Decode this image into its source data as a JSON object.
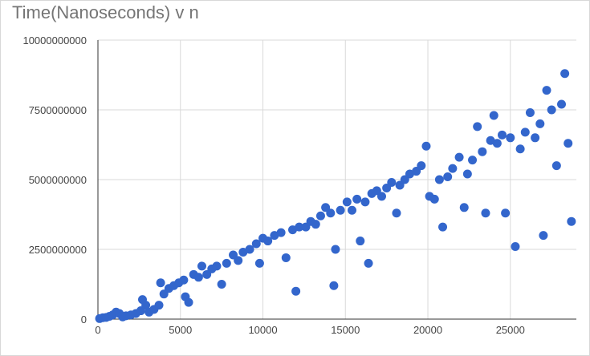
{
  "chart_data": {
    "type": "scatter",
    "title": "Time(Nanoseconds) v n",
    "xlabel": "",
    "ylabel": "",
    "xlim": [
      0,
      29000
    ],
    "ylim": [
      0,
      10000000000
    ],
    "x_ticks": [
      0,
      5000,
      10000,
      15000,
      20000,
      25000
    ],
    "y_ticks": [
      0,
      2500000000,
      5000000000,
      7500000000,
      10000000000
    ],
    "x_tick_labels": [
      "0",
      "5000",
      "10000",
      "15000",
      "20000",
      "25000"
    ],
    "y_tick_labels": [
      "0",
      "2500000000",
      "5000000000",
      "7500000000",
      "10000000000"
    ],
    "grid": true,
    "legend": "none",
    "point_color": "#3366cc",
    "series": [
      {
        "points": [
          [
            100,
            20000000
          ],
          [
            300,
            50000000
          ],
          [
            500,
            60000000
          ],
          [
            700,
            100000000
          ],
          [
            900,
            150000000
          ],
          [
            1100,
            250000000
          ],
          [
            1300,
            200000000
          ],
          [
            1500,
            80000000
          ],
          [
            1700,
            120000000
          ],
          [
            2000,
            150000000
          ],
          [
            2300,
            200000000
          ],
          [
            2600,
            300000000
          ],
          [
            2700,
            700000000
          ],
          [
            2900,
            500000000
          ],
          [
            3100,
            250000000
          ],
          [
            3400,
            350000000
          ],
          [
            3700,
            500000000
          ],
          [
            3800,
            1300000000
          ],
          [
            4000,
            900000000
          ],
          [
            4300,
            1100000000
          ],
          [
            4600,
            1200000000
          ],
          [
            4900,
            1300000000
          ],
          [
            5200,
            1400000000
          ],
          [
            5300,
            800000000
          ],
          [
            5500,
            600000000
          ],
          [
            5800,
            1600000000
          ],
          [
            6100,
            1500000000
          ],
          [
            6300,
            1900000000
          ],
          [
            6600,
            1600000000
          ],
          [
            6900,
            1800000000
          ],
          [
            7200,
            1900000000
          ],
          [
            7500,
            1250000000
          ],
          [
            7800,
            2000000000
          ],
          [
            8200,
            2300000000
          ],
          [
            8500,
            2100000000
          ],
          [
            8800,
            2400000000
          ],
          [
            9200,
            2500000000
          ],
          [
            9600,
            2700000000
          ],
          [
            9800,
            2000000000
          ],
          [
            10000,
            2900000000
          ],
          [
            10300,
            2800000000
          ],
          [
            10700,
            3000000000
          ],
          [
            11100,
            3100000000
          ],
          [
            11400,
            2200000000
          ],
          [
            11800,
            3200000000
          ],
          [
            12000,
            1000000000
          ],
          [
            12200,
            3300000000
          ],
          [
            12600,
            3300000000
          ],
          [
            12900,
            3500000000
          ],
          [
            13200,
            3400000000
          ],
          [
            13500,
            3700000000
          ],
          [
            13800,
            4000000000
          ],
          [
            14100,
            3800000000
          ],
          [
            14300,
            1200000000
          ],
          [
            14400,
            2500000000
          ],
          [
            14700,
            3900000000
          ],
          [
            15100,
            4200000000
          ],
          [
            15400,
            3900000000
          ],
          [
            15700,
            4300000000
          ],
          [
            15900,
            2800000000
          ],
          [
            16200,
            4200000000
          ],
          [
            16400,
            2000000000
          ],
          [
            16600,
            4500000000
          ],
          [
            16900,
            4600000000
          ],
          [
            17200,
            4400000000
          ],
          [
            17500,
            4700000000
          ],
          [
            17800,
            4900000000
          ],
          [
            18100,
            3800000000
          ],
          [
            18300,
            4800000000
          ],
          [
            18600,
            5000000000
          ],
          [
            18900,
            5200000000
          ],
          [
            19300,
            5300000000
          ],
          [
            19600,
            5500000000
          ],
          [
            19900,
            6200000000
          ],
          [
            20100,
            4400000000
          ],
          [
            20400,
            4300000000
          ],
          [
            20700,
            5000000000
          ],
          [
            20900,
            3300000000
          ],
          [
            21200,
            5100000000
          ],
          [
            21500,
            5400000000
          ],
          [
            21900,
            5800000000
          ],
          [
            22200,
            4000000000
          ],
          [
            22400,
            5200000000
          ],
          [
            22700,
            5700000000
          ],
          [
            23000,
            6900000000
          ],
          [
            23300,
            6000000000
          ],
          [
            23500,
            3800000000
          ],
          [
            23800,
            6400000000
          ],
          [
            24000,
            7300000000
          ],
          [
            24200,
            6300000000
          ],
          [
            24500,
            6600000000
          ],
          [
            24700,
            3800000000
          ],
          [
            25000,
            6500000000
          ],
          [
            25300,
            2600000000
          ],
          [
            25600,
            6100000000
          ],
          [
            25900,
            6700000000
          ],
          [
            26200,
            7400000000
          ],
          [
            26500,
            6500000000
          ],
          [
            26800,
            7000000000
          ],
          [
            27000,
            3000000000
          ],
          [
            27200,
            8200000000
          ],
          [
            27500,
            7500000000
          ],
          [
            27800,
            5500000000
          ],
          [
            28100,
            7700000000
          ],
          [
            28300,
            8800000000
          ],
          [
            28500,
            6300000000
          ],
          [
            28700,
            3500000000
          ]
        ]
      }
    ]
  }
}
